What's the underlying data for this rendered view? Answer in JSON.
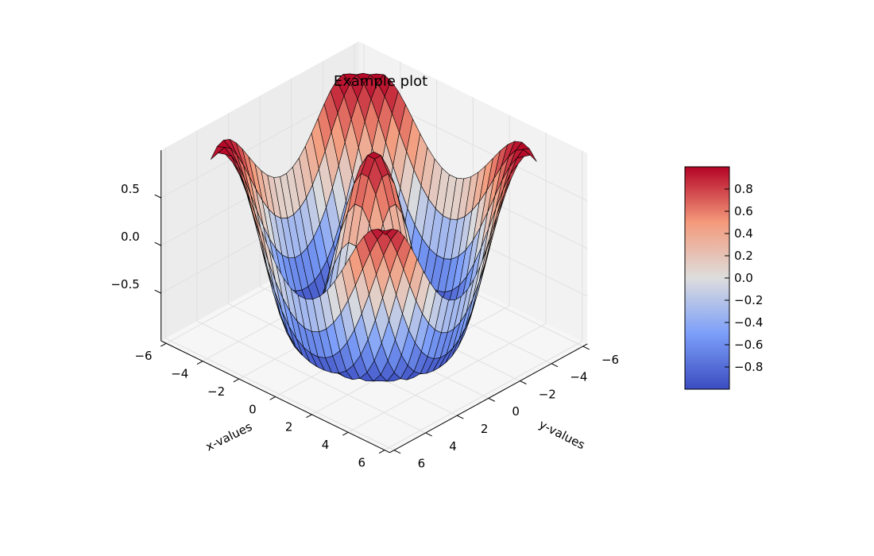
{
  "chart_data": {
    "type": "surface3d",
    "title": "Example plot",
    "xlabel": "x-values",
    "ylabel": "y-values",
    "zlabel": "",
    "function": "z = cos(r), r = sqrt(x^2 + y^2)",
    "xlim": [
      -6.2832,
      6.2832
    ],
    "ylim": [
      -6.2832,
      6.2832
    ],
    "zlim": [
      -1.0,
      1.0
    ],
    "x_ticks": [
      "−6",
      "−4",
      "−2",
      "0",
      "2",
      "4",
      "6"
    ],
    "x_tick_values": [
      -6,
      -4,
      -2,
      0,
      2,
      4,
      6
    ],
    "y_ticks": [
      "−6",
      "−4",
      "−2",
      "0",
      "2",
      "4",
      "6"
    ],
    "y_tick_values": [
      -6,
      -4,
      -2,
      0,
      2,
      4,
      6
    ],
    "z_ticks": [
      "−0.5",
      "0.0",
      "0.5"
    ],
    "z_tick_values": [
      -0.5,
      0.0,
      0.5
    ],
    "grid_step": 0.4,
    "grid": true,
    "colormap": "coolwarm",
    "colorbar": {
      "min": -1.0,
      "max": 1.0,
      "ticks": [
        "−0.8",
        "−0.6",
        "−0.4",
        "−0.2",
        "0.0",
        "0.2",
        "0.4",
        "0.6",
        "0.8"
      ],
      "tick_values": [
        -0.8,
        -0.6,
        -0.4,
        -0.2,
        0.0,
        0.2,
        0.4,
        0.6,
        0.8
      ],
      "placement": "right"
    },
    "colors": {
      "low": "#3b4cc0",
      "mid": "#dddddd",
      "high": "#b40426",
      "edge": "#000000",
      "pane": "#f2f2f2",
      "grid": "#e0e0e0"
    }
  }
}
